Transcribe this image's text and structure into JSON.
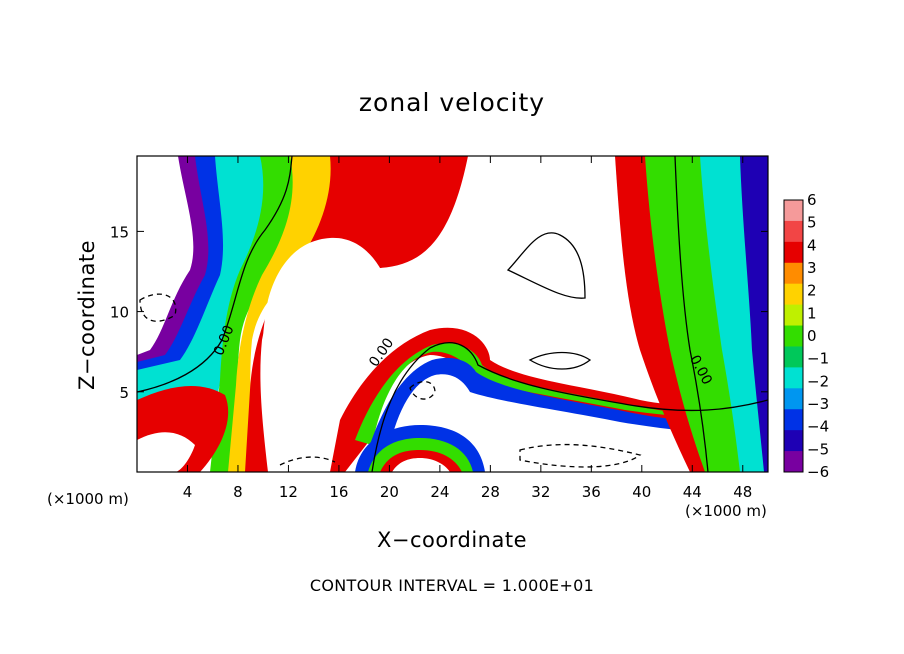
{
  "chart_data": {
    "type": "heatmap",
    "title": "zonal velocity",
    "xlabel": "X−coordinate",
    "ylabel": "Z−coordinate",
    "x_unit_left": "(×1000 m)",
    "x_unit_right": "(×1000 m)",
    "xlim": [
      0,
      50
    ],
    "ylim": [
      0,
      19.7
    ],
    "x_ticks": [
      4,
      8,
      12,
      16,
      20,
      24,
      28,
      32,
      36,
      40,
      44,
      48
    ],
    "x_tick_labels": [
      "4",
      "8",
      "12",
      "16",
      "20",
      "24",
      "28",
      "32",
      "36",
      "40",
      "44",
      "48"
    ],
    "y_ticks": [
      5,
      10,
      15
    ],
    "y_tick_labels": [
      "5",
      "10",
      "15"
    ],
    "colorbar": {
      "levels": [
        6,
        5,
        4,
        3,
        2,
        1,
        0,
        -1,
        -2,
        -3,
        -4,
        -5,
        -6
      ],
      "labels": [
        "6",
        "5",
        "4",
        "3",
        "2",
        "1",
        "0",
        "−1",
        "−2",
        "−3",
        "−4",
        "−5",
        "−6"
      ],
      "colors": [
        "#f59a9a",
        "#f24545",
        "#e60000",
        "#ff8c00",
        "#ffd200",
        "#bff000",
        "#33dd00",
        "#00c85a",
        "#00e1d2",
        "#0096f0",
        "#0032e6",
        "#1e00b4",
        "#7800a0"
      ]
    },
    "contour_label": "0.00",
    "contour_interval_text": "CONTOUR INTERVAL = 1.000E+01"
  }
}
